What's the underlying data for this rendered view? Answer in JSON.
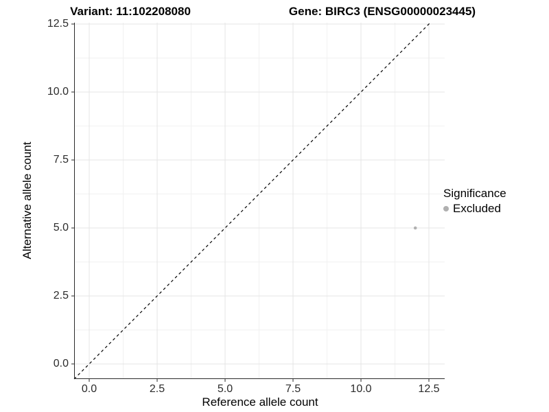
{
  "titles": {
    "variant": "Variant: 11:102208080",
    "gene": "Gene: BIRC3 (ENSG00000023445)"
  },
  "colors": {
    "background": "#ffffff",
    "grid_major": "#e4e4e4",
    "grid_minor": "#f1f1f1",
    "axis_line": "#2a2a2a",
    "tick_text": "#2b2b2b",
    "title_text": "#000000",
    "point": "#b0b0b0"
  },
  "legend": {
    "title": "Significance",
    "entries": [
      {
        "label": "Excluded",
        "color": "#b0b0b0"
      }
    ]
  },
  "chart_data": {
    "type": "scatter",
    "title_left": "Variant: 11:102208080",
    "title_right": "Gene: BIRC3 (ENSG00000023445)",
    "xlabel": "Reference allele count",
    "ylabel": "Alternative allele count",
    "xlim": [
      0,
      12.5
    ],
    "ylim": [
      0,
      12.5
    ],
    "x_ticks": [
      0,
      2.5,
      5,
      7.5,
      10,
      12.5
    ],
    "x_tick_labels": [
      "0.0",
      "2.5",
      "5.0",
      "7.5",
      "10.0",
      "12.5"
    ],
    "y_ticks": [
      0,
      2.5,
      5,
      7.5,
      10,
      12.5
    ],
    "y_tick_labels": [
      "0.0",
      "2.5",
      "5.0",
      "7.5",
      "10.0",
      "12.5"
    ],
    "grid": true,
    "minor_grid": true,
    "legend_position": "right",
    "series": [
      {
        "name": "Excluded",
        "color": "#b0b0b0",
        "points": [
          {
            "x": 12,
            "y": 5
          }
        ]
      }
    ],
    "reference_line": {
      "type": "identity",
      "slope": 1,
      "intercept": 0,
      "style": "dashed",
      "color": "#000000"
    }
  }
}
